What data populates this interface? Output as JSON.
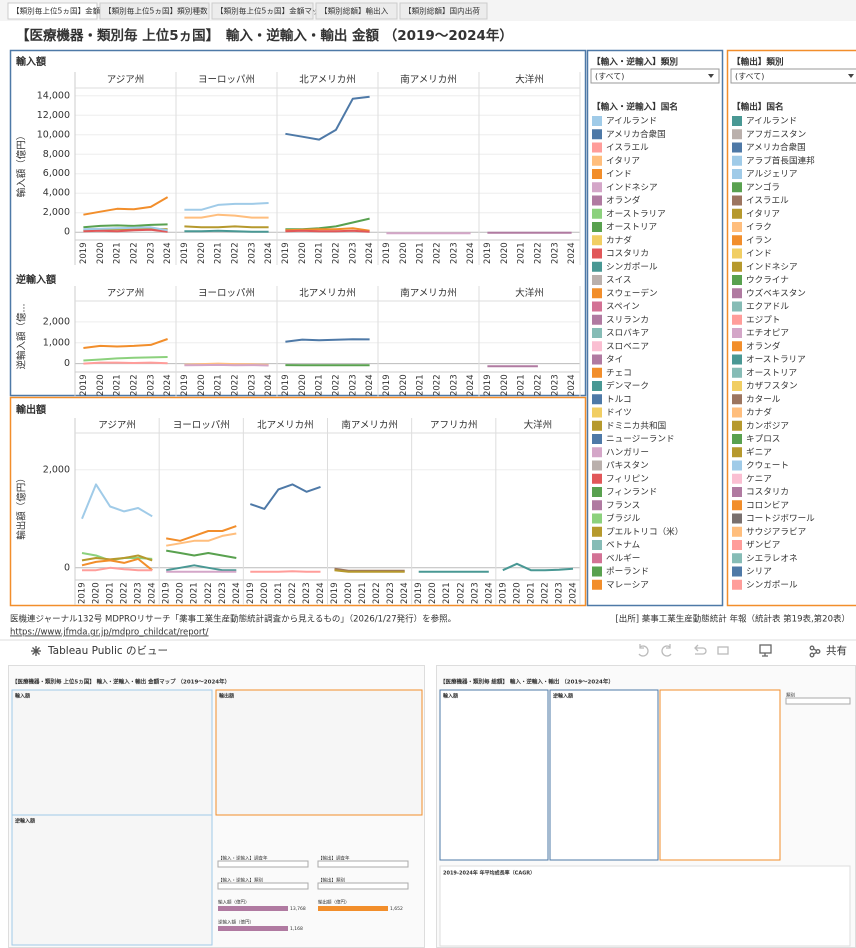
{
  "tabs": [
    "【類別毎上位5ヵ国】金額",
    "【類別毎上位5ヵ国】類別種数",
    "【類別毎上位5ヵ国】金額マップ",
    "【類別総額】輸出入",
    "【類別総額】国内出荷"
  ],
  "title": "【医療機器・類別毎 上位5ヵ国】　輸入・逆輸入・輸出 金額 （2019〜2024年）",
  "chart_data": [
    {
      "type": "line",
      "title": "輸入額",
      "ylabel": "輸入額（億円）",
      "x": [
        2019,
        2020,
        2021,
        2022,
        2023,
        2024
      ],
      "ylim": [
        -800,
        14800
      ],
      "yticks": [
        0,
        {
          "value": 2000,
          "label": "2,000"
        },
        {
          "value": 4000,
          "label": "4,000"
        },
        {
          "value": 6000,
          "label": "6,000"
        },
        {
          "value": 8000,
          "label": "8,000"
        },
        {
          "value": 10000,
          "label": "10,000"
        },
        {
          "value": 12000,
          "label": "12,000"
        },
        {
          "value": 14000,
          "label": "14,000"
        }
      ],
      "panels": [
        {
          "name": "アジア州",
          "series": [
            {
              "color": "#f28e2b",
              "values": [
                1800,
                2100,
                2400,
                2350,
                2600,
                3600
              ]
            },
            {
              "color": "#59a14f",
              "values": [
                500,
                650,
                700,
                650,
                750,
                800
              ]
            },
            {
              "color": "#b6992d",
              "values": [
                200,
                250,
                300,
                300,
                350,
                300
              ]
            },
            {
              "color": "#e15759",
              "values": [
                100,
                150,
                100,
                200,
                250,
                50
              ]
            },
            {
              "color": "#a0cbe8",
              "values": [
                300,
                350,
                400,
                450,
                500,
                200
              ]
            }
          ]
        },
        {
          "name": "ヨーロッパ州",
          "series": [
            {
              "color": "#a0cbe8",
              "values": [
                2300,
                2300,
                2800,
                2900,
                2900,
                3000
              ]
            },
            {
              "color": "#ffbe7d",
              "values": [
                1500,
                1500,
                1800,
                1700,
                1500,
                1500
              ]
            },
            {
              "color": "#b6992d",
              "values": [
                600,
                500,
                500,
                600,
                500,
                500
              ]
            },
            {
              "color": "#499894",
              "values": [
                100,
                100,
                150,
                100,
                50,
                50
              ]
            }
          ]
        },
        {
          "name": "北アメリカ州",
          "series": [
            {
              "color": "#4e79a7",
              "values": [
                10100,
                9800,
                9500,
                10500,
                13700,
                13900
              ]
            },
            {
              "color": "#59a14f",
              "values": [
                300,
                300,
                400,
                600,
                1000,
                1400
              ]
            },
            {
              "color": "#f28e2b",
              "values": [
                200,
                250,
                300,
                300,
                400,
                150
              ]
            },
            {
              "color": "#e15759",
              "values": [
                100,
                150,
                100,
                100,
                150,
                50
              ]
            }
          ]
        },
        {
          "name": "南アメリカ州",
          "series": [
            {
              "color": "#d4a6c8",
              "values": [
                -100,
                -100,
                -100,
                -100,
                -100,
                -100
              ]
            }
          ]
        },
        {
          "name": "大洋州",
          "series": [
            {
              "color": "#b07aa1",
              "values": [
                -50,
                -50,
                -50,
                -50,
                -50,
                -50
              ]
            }
          ]
        }
      ]
    },
    {
      "type": "line",
      "title": "逆輸入額",
      "ylabel": "逆輸入額（億...",
      "x": [
        2019,
        2020,
        2021,
        2022,
        2023,
        2024
      ],
      "ylim": [
        -400,
        3000
      ],
      "yticks": [
        0,
        {
          "value": 1000,
          "label": "1,000"
        },
        {
          "value": 2000,
          "label": "2,000"
        }
      ],
      "panels": [
        {
          "name": "アジア州",
          "series": [
            {
              "color": "#f28e2b",
              "values": [
                750,
                850,
                820,
                850,
                900,
                1180
              ]
            },
            {
              "color": "#8cd17d",
              "values": [
                150,
                200,
                250,
                280,
                300,
                320
              ]
            },
            {
              "color": "#ff9d9a",
              "values": [
                0,
                50,
                50,
                30,
                50,
                20
              ]
            }
          ]
        },
        {
          "name": "ヨーロッパ州",
          "series": [
            {
              "color": "#ffbe7d",
              "values": [
                -50,
                -20,
                0,
                -20,
                -30,
                -60
              ]
            },
            {
              "color": "#d4a6c8",
              "values": [
                -80,
                -70,
                -60,
                -80,
                -70,
                -90
              ]
            }
          ]
        },
        {
          "name": "北アメリカ州",
          "series": [
            {
              "color": "#4e79a7",
              "values": [
                1050,
                1150,
                1120,
                1140,
                1170,
                1160
              ]
            },
            {
              "color": "#59a14f",
              "values": [
                -70,
                -80,
                -80,
                -80,
                -80,
                -80
              ]
            }
          ]
        },
        {
          "name": "南アメリカ州",
          "series": []
        },
        {
          "name": "大洋州",
          "series": [
            {
              "color": "#b07aa1",
              "values": [
                -120,
                -120,
                -120,
                -120,
                null,
                -120
              ]
            }
          ]
        }
      ]
    },
    {
      "type": "line",
      "title": "輸出額",
      "ylabel": "輸出額（億円）",
      "x": [
        2019,
        2020,
        2021,
        2022,
        2023,
        2024
      ],
      "ylim": [
        -250,
        2750
      ],
      "yticks": [
        0,
        {
          "value": 2000,
          "label": "2,000"
        }
      ],
      "panels": [
        {
          "name": "アジア州",
          "series": [
            {
              "color": "#a0cbe8",
              "values": [
                1000,
                1700,
                1250,
                1150,
                1220,
                1050
              ]
            },
            {
              "color": "#8cd17d",
              "values": [
                300,
                250,
                150,
                200,
                200,
                180
              ]
            },
            {
              "color": "#b6992d",
              "values": [
                150,
                200,
                170,
                200,
                250,
                150
              ]
            },
            {
              "color": "#f28e2b",
              "values": [
                50,
                120,
                150,
                100,
                180,
                -50
              ]
            },
            {
              "color": "#ff9d9a",
              "values": [
                -50,
                -50,
                0,
                -30,
                -50,
                -50
              ]
            }
          ]
        },
        {
          "name": "ヨーロッパ州",
          "series": [
            {
              "color": "#f28e2b",
              "values": [
                600,
                550,
                650,
                750,
                750,
                850
              ]
            },
            {
              "color": "#ffbe7d",
              "values": [
                450,
                500,
                550,
                550,
                650,
                700
              ]
            },
            {
              "color": "#59a14f",
              "values": [
                350,
                300,
                250,
                300,
                250,
                200
              ]
            },
            {
              "color": "#499894",
              "values": [
                -50,
                0,
                50,
                0,
                -50,
                -50
              ]
            },
            {
              "color": "#d4a6c8",
              "values": [
                -80,
                -80,
                -80,
                -80,
                -80,
                -80
              ]
            }
          ]
        },
        {
          "name": "北アメリカ州",
          "series": [
            {
              "color": "#4e79a7",
              "values": [
                1300,
                1200,
                1600,
                1700,
                1550,
                1650
              ]
            },
            {
              "color": "#ff9d9a",
              "values": [
                -80,
                -80,
                -80,
                -70,
                -80,
                -80
              ]
            }
          ]
        },
        {
          "name": "南アメリカ州",
          "series": [
            {
              "color": "#9c755f",
              "values": [
                -20,
                -60,
                -60,
                -60,
                -60,
                -60
              ]
            },
            {
              "color": "#b6992d",
              "values": [
                -50,
                -80,
                -80,
                -80,
                -80,
                -80
              ]
            }
          ]
        },
        {
          "name": "アフリカ州",
          "series": [
            {
              "color": "#499894",
              "values": [
                -80,
                -80,
                -80,
                -80,
                -80,
                -80
              ]
            }
          ]
        },
        {
          "name": "大洋州",
          "series": [
            {
              "color": "#499894",
              "values": [
                -50,
                80,
                -50,
                -50,
                -40,
                -20
              ]
            }
          ]
        }
      ]
    }
  ],
  "filters": [
    {
      "category_label": "【輸入・逆輸入】類別",
      "selected": "(すべて)",
      "country_label": "【輸入・逆輸入】国名",
      "items": [
        {
          "name": "アイルランド",
          "color": "#a0cbe8"
        },
        {
          "name": "アメリカ合衆国",
          "color": "#4e79a7"
        },
        {
          "name": "イスラエル",
          "color": "#ff9d9a"
        },
        {
          "name": "イタリア",
          "color": "#ffbe7d"
        },
        {
          "name": "インド",
          "color": "#f28e2b"
        },
        {
          "name": "インドネシア",
          "color": "#d4a6c8"
        },
        {
          "name": "オランダ",
          "color": "#b07aa1"
        },
        {
          "name": "オーストラリア",
          "color": "#8cd17d"
        },
        {
          "name": "オーストリア",
          "color": "#59a14f"
        },
        {
          "name": "カナダ",
          "color": "#f1ce63"
        },
        {
          "name": "コスタリカ",
          "color": "#e15759"
        },
        {
          "name": "シンガポール",
          "color": "#499894"
        },
        {
          "name": "スイス",
          "color": "#bab0ac"
        },
        {
          "name": "スウェーデン",
          "color": "#f28e2b"
        },
        {
          "name": "スペイン",
          "color": "#d37295"
        },
        {
          "name": "スリランカ",
          "color": "#b07aa1"
        },
        {
          "name": "スロバキア",
          "color": "#86bcb6"
        },
        {
          "name": "スロベニア",
          "color": "#fabfd2"
        },
        {
          "name": "タイ",
          "color": "#b07aa1"
        },
        {
          "name": "チェコ",
          "color": "#f28e2b"
        },
        {
          "name": "デンマーク",
          "color": "#499894"
        },
        {
          "name": "トルコ",
          "color": "#4e79a7"
        },
        {
          "name": "ドイツ",
          "color": "#f1ce63"
        },
        {
          "name": "ドミニカ共和国",
          "color": "#b6992d"
        },
        {
          "name": "ニュージーランド",
          "color": "#4e79a7"
        },
        {
          "name": "ハンガリー",
          "color": "#d4a6c8"
        },
        {
          "name": "パキスタン",
          "color": "#bab0ac"
        },
        {
          "name": "フィリピン",
          "color": "#e15759"
        },
        {
          "name": "フィンランド",
          "color": "#59a14f"
        },
        {
          "name": "フランス",
          "color": "#b07aa1"
        },
        {
          "name": "ブラジル",
          "color": "#8cd17d"
        },
        {
          "name": "プエルトリコ（米）",
          "color": "#b6992d"
        },
        {
          "name": "ベトナム",
          "color": "#86bcb6"
        },
        {
          "name": "ベルギー",
          "color": "#d37295"
        },
        {
          "name": "ポーランド",
          "color": "#59a14f"
        },
        {
          "name": "マレーシア",
          "color": "#f28e2b"
        }
      ]
    },
    {
      "category_label": "【輸出】類別",
      "selected": "(すべて)",
      "country_label": "【輸出】国名",
      "items": [
        {
          "name": "アイルランド",
          "color": "#499894"
        },
        {
          "name": "アフガニスタン",
          "color": "#bab0ac"
        },
        {
          "name": "アメリカ合衆国",
          "color": "#4e79a7"
        },
        {
          "name": "アラブ首長国連邦",
          "color": "#a0cbe8"
        },
        {
          "name": "アルジェリア",
          "color": "#a0cbe8"
        },
        {
          "name": "アンゴラ",
          "color": "#59a14f"
        },
        {
          "name": "イスラエル",
          "color": "#9c755f"
        },
        {
          "name": "イタリア",
          "color": "#b6992d"
        },
        {
          "name": "イラク",
          "color": "#ffbe7d"
        },
        {
          "name": "イラン",
          "color": "#f28e2b"
        },
        {
          "name": "インド",
          "color": "#f1ce63"
        },
        {
          "name": "インドネシア",
          "color": "#b6992d"
        },
        {
          "name": "ウクライナ",
          "color": "#59a14f"
        },
        {
          "name": "ウズベキスタン",
          "color": "#b07aa1"
        },
        {
          "name": "エクアドル",
          "color": "#86bcb6"
        },
        {
          "name": "エジプト",
          "color": "#ff9d9a"
        },
        {
          "name": "エチオピア",
          "color": "#d4a6c8"
        },
        {
          "name": "オランダ",
          "color": "#f28e2b"
        },
        {
          "name": "オーストラリア",
          "color": "#499894"
        },
        {
          "name": "オーストリア",
          "color": "#86bcb6"
        },
        {
          "name": "カザフスタン",
          "color": "#f1ce63"
        },
        {
          "name": "カタール",
          "color": "#9c755f"
        },
        {
          "name": "カナダ",
          "color": "#ffbe7d"
        },
        {
          "name": "カンボジア",
          "color": "#b6992d"
        },
        {
          "name": "キプロス",
          "color": "#59a14f"
        },
        {
          "name": "ギニア",
          "color": "#b6992d"
        },
        {
          "name": "クウェート",
          "color": "#a0cbe8"
        },
        {
          "name": "ケニア",
          "color": "#fabfd2"
        },
        {
          "name": "コスタリカ",
          "color": "#b07aa1"
        },
        {
          "name": "コロンビア",
          "color": "#f28e2b"
        },
        {
          "name": "コートジボワール",
          "color": "#79706e"
        },
        {
          "name": "サウジアラビア",
          "color": "#ffbe7d"
        },
        {
          "name": "ザンビア",
          "color": "#ff9d9a"
        },
        {
          "name": "シエラレオネ",
          "color": "#86bcb6"
        },
        {
          "name": "シリア",
          "color": "#4e79a7"
        },
        {
          "name": "シンガポール",
          "color": "#ff9d9a"
        }
      ]
    }
  ],
  "footer": {
    "note": "医機連ジャーナル132号 MDPROリサーチ「薬事工業生産動態統計調査から見えるもの」（2026/1/27発行）を参照。",
    "link": "https://www.jfmda.gr.jp/mdpro_childcat/report/",
    "source": "[出所] 薬事工業生産動態統計 年報（統計表 第19表,第20表）"
  },
  "toolbar": {
    "title": "Tableau Public のビュー",
    "share": "共有"
  },
  "thumbnails": [
    {
      "title": "【医療機器・類別毎 上位5ヵ国】 輸入・逆輸入・輸出 金額マップ （2019〜2024年）",
      "panels": [
        "輸入額",
        "輸出額",
        "逆輸入額"
      ],
      "filters": [
        "【輸入・逆輸入】調査年",
        "【輸出】調査年",
        "【輸入・逆輸入】類別",
        "【輸出】類別"
      ],
      "legends": [
        {
          "label": "輸入額（億円）",
          "max": "13,768"
        },
        {
          "label": "輸出額（億円）",
          "max": "1,652"
        },
        {
          "label": "逆輸入額（億円）",
          "max": "1,168"
        }
      ]
    },
    {
      "title": "【医療機器・類別毎 総額】 輸入・逆輸入・輸出 （2019〜2024年）",
      "panels": [
        "輸入額",
        "逆輸入額"
      ],
      "table_title": "2019-2024年 年平均成長率（CAGR）",
      "filter": "類別"
    }
  ]
}
